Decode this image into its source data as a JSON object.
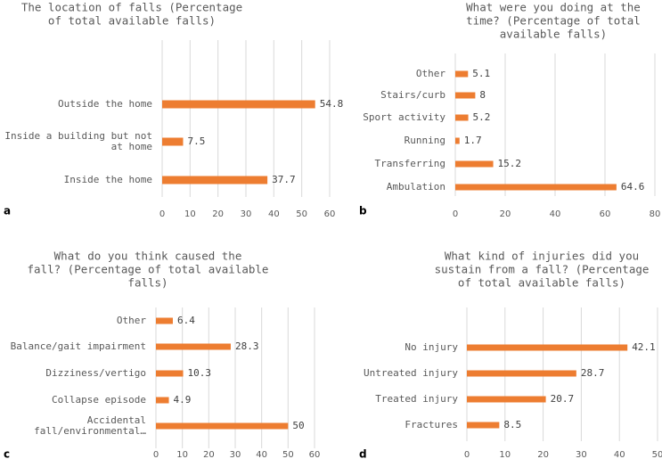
{
  "chart_data": [
    {
      "type": "bar",
      "orientation": "horizontal",
      "panel_label": "a",
      "title": [
        "The location of falls (Percentage",
        "of total available falls)"
      ],
      "categories": [
        [
          "Outside the home"
        ],
        [
          "Inside a building but not",
          "at home"
        ],
        [
          "Inside the home"
        ]
      ],
      "values": [
        54.8,
        7.5,
        37.7
      ],
      "value_labels": [
        "54.8",
        "7.5",
        "37.7"
      ],
      "xlim": [
        0,
        60
      ],
      "xticks": [
        "0",
        "10",
        "20",
        "30",
        "40",
        "50",
        "60"
      ],
      "grid": true
    },
    {
      "type": "bar",
      "orientation": "horizontal",
      "panel_label": "b",
      "title": [
        "What were you doing at the",
        "time? (Percentage of total",
        "available falls)"
      ],
      "categories": [
        [
          "Other"
        ],
        [
          "Stairs/curb"
        ],
        [
          "Sport activity"
        ],
        [
          "Running"
        ],
        [
          "Transferring"
        ],
        [
          "Ambulation"
        ]
      ],
      "values": [
        5.1,
        8,
        5.2,
        1.7,
        15.2,
        64.6
      ],
      "value_labels": [
        "5.1",
        "8",
        "5.2",
        "1.7",
        "15.2",
        "64.6"
      ],
      "xlim": [
        0,
        80
      ],
      "xticks": [
        "0",
        "20",
        "40",
        "60",
        "80"
      ],
      "grid": true
    },
    {
      "type": "bar",
      "orientation": "horizontal",
      "panel_label": "c",
      "title": [
        "What do you think caused the",
        "fall? (Percentage of total available",
        "falls)"
      ],
      "categories": [
        [
          "Other"
        ],
        [
          "Balance/gait impairment"
        ],
        [
          "Dizziness/vertigo"
        ],
        [
          "Collapse episode"
        ],
        [
          "Accidental",
          "fall/environmental…"
        ]
      ],
      "values": [
        6.4,
        28.3,
        10.3,
        4.9,
        50
      ],
      "value_labels": [
        "6.4",
        "28.3",
        "10.3",
        "4.9",
        "50"
      ],
      "xlim": [
        0,
        60
      ],
      "xticks": [
        "0",
        "10",
        "20",
        "30",
        "40",
        "50",
        "60"
      ],
      "grid": true
    },
    {
      "type": "bar",
      "orientation": "horizontal",
      "panel_label": "d",
      "title": [
        "What kind of injuries did you",
        "sustain from a fall? (Percentage",
        "of total available falls)"
      ],
      "categories": [
        [
          "No injury"
        ],
        [
          "Untreated injury"
        ],
        [
          "Treated injury"
        ],
        [
          "Fractures"
        ]
      ],
      "values": [
        42.1,
        28.7,
        20.7,
        8.5
      ],
      "value_labels": [
        "42.1",
        "28.7",
        "20.7",
        "8.5"
      ],
      "xlim": [
        0,
        50
      ],
      "xticks": [
        "0",
        "10",
        "20",
        "30",
        "40",
        "50"
      ],
      "grid": true
    }
  ],
  "colors": {
    "bar": "#ed7d31",
    "grid": "#d9d9d9",
    "text": "#595959"
  }
}
